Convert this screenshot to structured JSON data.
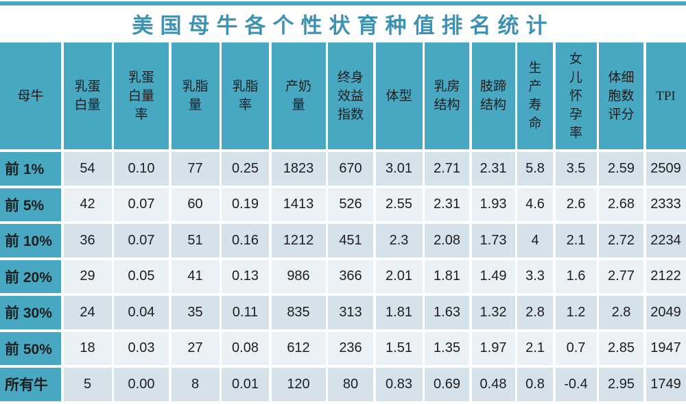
{
  "title": "美国母牛各个性状育种值排名统计",
  "colors": {
    "accent_teal": "#48a8c2",
    "title_teal": "#3d92b4",
    "row_stripe_dark": "#d5e2ea",
    "row_stripe_light": "#ebf1f5",
    "text": "#1d1d1d",
    "background": "#ffffff"
  },
  "chart_data": {
    "type": "table",
    "title": "美国母牛各个性状育种值排名统计",
    "columns": [
      "母牛",
      "乳蛋白量",
      "乳蛋白量率",
      "乳脂量",
      "乳脂率",
      "产奶量",
      "终身效益指数",
      "体型",
      "乳房结构",
      "肢蹄结构",
      "生产寿命",
      "女儿怀孕率",
      "体细胞数评分",
      "TPI"
    ],
    "header_display": [
      "母牛",
      "乳蛋\n白量",
      "乳蛋\n白量\n率",
      "乳脂\n量",
      "乳脂\n率",
      "产奶\n量",
      "终身\n效益\n指数",
      "体型",
      "乳房\n结构",
      "肢蹄\n结构",
      "生\n产\n寿\n命",
      "女\n儿\n怀\n孕\n率",
      "体细\n胞数\n评分",
      "TPI"
    ],
    "rows": [
      {
        "label": "前 1%",
        "values": [
          "54",
          "0.10",
          "77",
          "0.25",
          "1823",
          "670",
          "3.01",
          "2.71",
          "2.31",
          "5.8",
          "3.5",
          "2.59",
          "2509"
        ]
      },
      {
        "label": "前 5%",
        "values": [
          "42",
          "0.07",
          "60",
          "0.19",
          "1413",
          "526",
          "2.55",
          "2.31",
          "1.93",
          "4.6",
          "2.6",
          "2.68",
          "2333"
        ]
      },
      {
        "label": "前 10%",
        "values": [
          "36",
          "0.07",
          "51",
          "0.16",
          "1212",
          "451",
          "2.3",
          "2.08",
          "1.73",
          "4",
          "2.1",
          "2.72",
          "2234"
        ]
      },
      {
        "label": "前 20%",
        "values": [
          "29",
          "0.05",
          "41",
          "0.13",
          "986",
          "366",
          "2.01",
          "1.81",
          "1.49",
          "3.3",
          "1.6",
          "2.77",
          "2122"
        ]
      },
      {
        "label": "前 30%",
        "values": [
          "24",
          "0.04",
          "35",
          "0.11",
          "835",
          "313",
          "1.81",
          "1.63",
          "1.32",
          "2.8",
          "1.2",
          "2.8",
          "2049"
        ]
      },
      {
        "label": "前 50%",
        "values": [
          "18",
          "0.03",
          "27",
          "0.08",
          "612",
          "236",
          "1.51",
          "1.35",
          "1.97",
          "2.1",
          "0.7",
          "2.85",
          "1947"
        ]
      },
      {
        "label": "所有牛",
        "values": [
          "5",
          "0.00",
          "8",
          "0.01",
          "120",
          "80",
          "0.83",
          "0.69",
          "0.48",
          "0.8",
          "-0.4",
          "2.95",
          "1749"
        ]
      }
    ]
  }
}
